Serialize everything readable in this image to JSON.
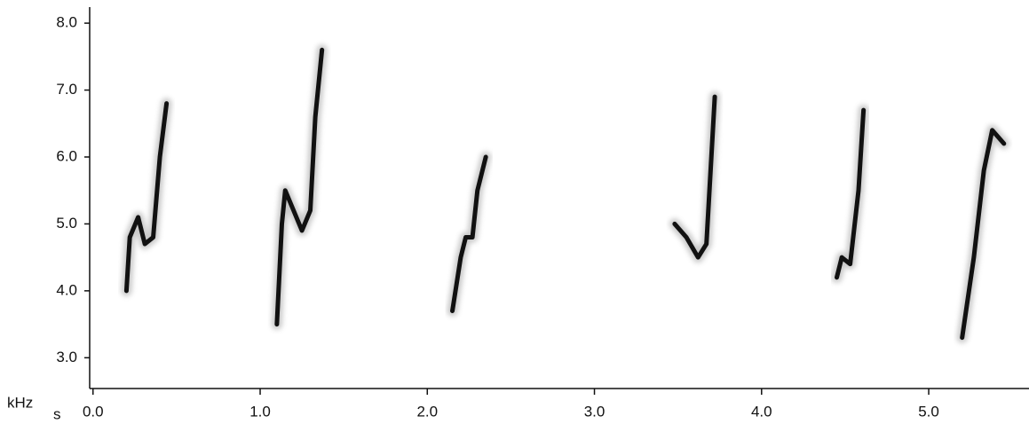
{
  "chart_data": {
    "type": "spectrogram",
    "x_label": "s",
    "y_label": "kHz",
    "xlim": [
      -0.02,
      5.6
    ],
    "ylim": [
      2.54,
      8.24
    ],
    "xticks": [
      {
        "value": 0,
        "label": "0.0"
      },
      {
        "value": 1,
        "label": "1.0"
      },
      {
        "value": 2,
        "label": "2.0"
      },
      {
        "value": 3,
        "label": "3.0"
      },
      {
        "value": 4,
        "label": "4.0"
      },
      {
        "value": 5,
        "label": "5.0"
      }
    ],
    "yticks": [
      {
        "value": 3,
        "label": "3.0"
      },
      {
        "value": 4,
        "label": "4.0"
      },
      {
        "value": 5,
        "label": "5.0"
      },
      {
        "value": 6,
        "label": "6.0"
      },
      {
        "value": 7,
        "label": "7.0"
      },
      {
        "value": 8,
        "label": "8.0"
      }
    ],
    "color": "#111111",
    "notes": [
      {
        "x": [
          0.2,
          0.22,
          0.27,
          0.31,
          0.36,
          0.4,
          0.44
        ],
        "values": [
          4.0,
          4.8,
          5.1,
          4.7,
          4.8,
          6.0,
          6.8
        ]
      },
      {
        "x": [
          1.1,
          1.13,
          1.15,
          1.2,
          1.25,
          1.3,
          1.33,
          1.37
        ],
        "values": [
          3.5,
          5.0,
          5.5,
          5.2,
          4.9,
          5.2,
          6.6,
          7.6
        ]
      },
      {
        "x": [
          2.15,
          2.2,
          2.23,
          2.27,
          2.3,
          2.35
        ],
        "values": [
          3.7,
          4.5,
          4.8,
          4.8,
          5.5,
          6.0
        ]
      },
      {
        "x": [
          3.48,
          3.55,
          3.62,
          3.67,
          3.72
        ],
        "values": [
          5.0,
          4.8,
          4.5,
          4.7,
          6.9
        ]
      },
      {
        "x": [
          4.45,
          4.48,
          4.53,
          4.58,
          4.61
        ],
        "values": [
          4.2,
          4.5,
          4.4,
          5.5,
          6.7
        ]
      },
      {
        "x": [
          5.2,
          5.27,
          5.33,
          5.38,
          5.45
        ],
        "values": [
          3.3,
          4.5,
          5.8,
          6.4,
          6.2
        ]
      }
    ]
  }
}
